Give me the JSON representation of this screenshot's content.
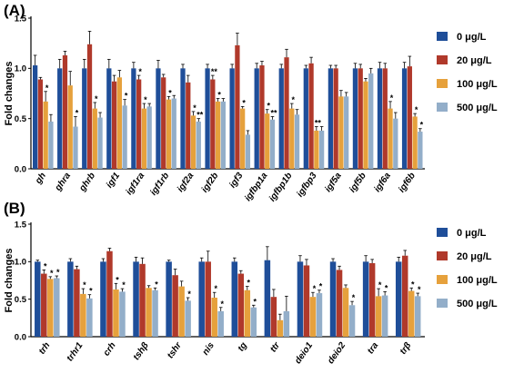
{
  "chart_data": [
    {
      "panel_label": "(A)",
      "type": "bar",
      "ylabel": "Fold changes",
      "ylim": [
        0,
        1.5
      ],
      "yticks": [
        "0.0",
        "0.5",
        "1.0",
        "1.5"
      ],
      "yticks_values": [
        0,
        0.5,
        1.0,
        1.5
      ],
      "legend_position": "right",
      "categories": [
        "gh",
        "ghra",
        "ghrb",
        "igf1",
        "igf1ra",
        "igf1rb",
        "igf2a",
        "igf2b",
        "igf3",
        "igfbp1a",
        "igfbp1b",
        "igfbp3",
        "igf5a",
        "igf5b",
        "igf6a",
        "igf6b"
      ],
      "series": [
        {
          "name": "0 μg/L",
          "color": "#1f4e99",
          "values": [
            1.03,
            1.0,
            1.0,
            1.0,
            1.0,
            1.0,
            1.0,
            1.0,
            1.0,
            1.0,
            1.0,
            1.0,
            1.0,
            1.0,
            1.0,
            1.0
          ],
          "errors": [
            0.1,
            0.09,
            0.09,
            0.09,
            0.06,
            0.08,
            0.04,
            0.04,
            0.04,
            0.05,
            0.04,
            0.03,
            0.03,
            0.05,
            0.06,
            0.06
          ],
          "sig": [
            "",
            "",
            "",
            "",
            "",
            "",
            "",
            "",
            "",
            "",
            "",
            "",
            "",
            "",
            "",
            ""
          ]
        },
        {
          "name": "20 μg/L",
          "color": "#b0392b",
          "values": [
            0.89,
            1.13,
            1.24,
            0.87,
            0.89,
            0.91,
            0.86,
            0.89,
            1.23,
            1.03,
            1.11,
            1.05,
            1.0,
            1.0,
            1.0,
            1.02
          ],
          "errors": [
            0.02,
            0.04,
            0.13,
            0.06,
            0.04,
            0.03,
            0.07,
            0.04,
            0.12,
            0.04,
            0.08,
            0.06,
            0.03,
            0.04,
            0.05,
            0.1
          ],
          "sig": [
            "",
            "",
            "",
            "",
            "*",
            "",
            "",
            "**",
            "",
            "",
            "",
            "",
            "",
            "",
            "",
            ""
          ]
        },
        {
          "name": "100 μg/L",
          "color": "#e6a13c",
          "values": [
            0.67,
            0.83,
            0.6,
            0.91,
            0.6,
            0.69,
            0.53,
            0.67,
            0.6,
            0.55,
            0.6,
            0.38,
            0.72,
            0.87,
            0.6,
            0.52
          ],
          "errors": [
            0.1,
            0.14,
            0.06,
            0.07,
            0.05,
            0.03,
            0.04,
            0.03,
            0.02,
            0.04,
            0.05,
            0.04,
            0.06,
            0.03,
            0.07,
            0.03
          ],
          "sig": [
            "*",
            "",
            "*",
            "",
            "*",
            "*",
            "*",
            "*",
            "*",
            "*",
            "*",
            "**",
            "",
            "",
            "*",
            "*"
          ]
        },
        {
          "name": "500 μg/L",
          "color": "#93aec9",
          "values": [
            0.47,
            0.42,
            0.51,
            0.63,
            0.62,
            0.7,
            0.47,
            0.67,
            0.34,
            0.49,
            0.54,
            0.38,
            0.72,
            0.95,
            0.5,
            0.37
          ],
          "errors": [
            0.07,
            0.1,
            0.05,
            0.06,
            0.03,
            0.03,
            0.03,
            0.03,
            0.04,
            0.03,
            0.05,
            0.04,
            0.04,
            0.05,
            0.06,
            0.03
          ],
          "sig": [
            "",
            "*",
            "",
            "*",
            "",
            "",
            "**",
            "",
            "",
            "**",
            "",
            "",
            "",
            "",
            "",
            "*"
          ]
        }
      ]
    },
    {
      "panel_label": "(B)",
      "type": "bar",
      "ylabel": "Fold changes",
      "ylim": [
        0,
        1.5
      ],
      "yticks": [
        "0.0",
        "0.5",
        "1.0",
        "1.5"
      ],
      "yticks_values": [
        0,
        0.5,
        1.0,
        1.5
      ],
      "legend_position": "right",
      "categories": [
        "trh",
        "trhr1",
        "crh",
        "tshβ",
        "tshr",
        "nis",
        "tg",
        "ttr",
        "deio1",
        "deio2",
        "tra",
        "trβ"
      ],
      "series": [
        {
          "name": "0 μg/L",
          "color": "#1f4e99",
          "values": [
            1.0,
            1.0,
            1.0,
            1.0,
            1.0,
            1.0,
            1.0,
            1.02,
            1.0,
            1.0,
            1.0,
            1.0
          ],
          "errors": [
            0.02,
            0.04,
            0.04,
            0.06,
            0.02,
            0.05,
            0.05,
            0.18,
            0.08,
            0.04,
            0.08,
            0.06
          ],
          "sig": [
            "",
            "",
            "",
            "",
            "",
            "",
            "",
            "",
            "",
            "",
            "",
            ""
          ]
        },
        {
          "name": "20 μg/L",
          "color": "#b0392b",
          "values": [
            0.84,
            0.9,
            1.14,
            0.97,
            0.82,
            1.0,
            0.84,
            0.53,
            0.95,
            0.89,
            0.98,
            1.08
          ],
          "errors": [
            0.05,
            0.04,
            0.04,
            0.08,
            0.08,
            0.14,
            0.04,
            0.1,
            0.08,
            0.05,
            0.05,
            0.07
          ],
          "sig": [
            "*",
            "",
            "",
            "",
            "",
            "",
            "",
            "",
            "",
            "",
            "",
            ""
          ]
        },
        {
          "name": "100 μg/L",
          "color": "#e6a13c",
          "values": [
            0.77,
            0.57,
            0.63,
            0.65,
            0.67,
            0.52,
            0.62,
            0.22,
            0.53,
            0.65,
            0.54,
            0.61
          ],
          "errors": [
            0.03,
            0.07,
            0.08,
            0.03,
            0.07,
            0.07,
            0.05,
            0.08,
            0.06,
            0.04,
            0.1,
            0.04
          ],
          "sig": [
            "*",
            "*",
            "*",
            "",
            "",
            "*",
            "*",
            "",
            "*",
            "",
            "*",
            "*"
          ]
        },
        {
          "name": "500 μg/L",
          "color": "#93aec9",
          "values": [
            0.78,
            0.51,
            0.6,
            0.62,
            0.48,
            0.34,
            0.39,
            0.34,
            0.58,
            0.42,
            0.55,
            0.54
          ],
          "errors": [
            0.03,
            0.05,
            0.04,
            0.03,
            0.04,
            0.05,
            0.03,
            0.2,
            0.04,
            0.05,
            0.05,
            0.04
          ],
          "sig": [
            "*",
            "*",
            "*",
            "*",
            "*",
            "*",
            "*",
            "",
            "*",
            "*",
            "*",
            "*"
          ]
        }
      ]
    }
  ]
}
